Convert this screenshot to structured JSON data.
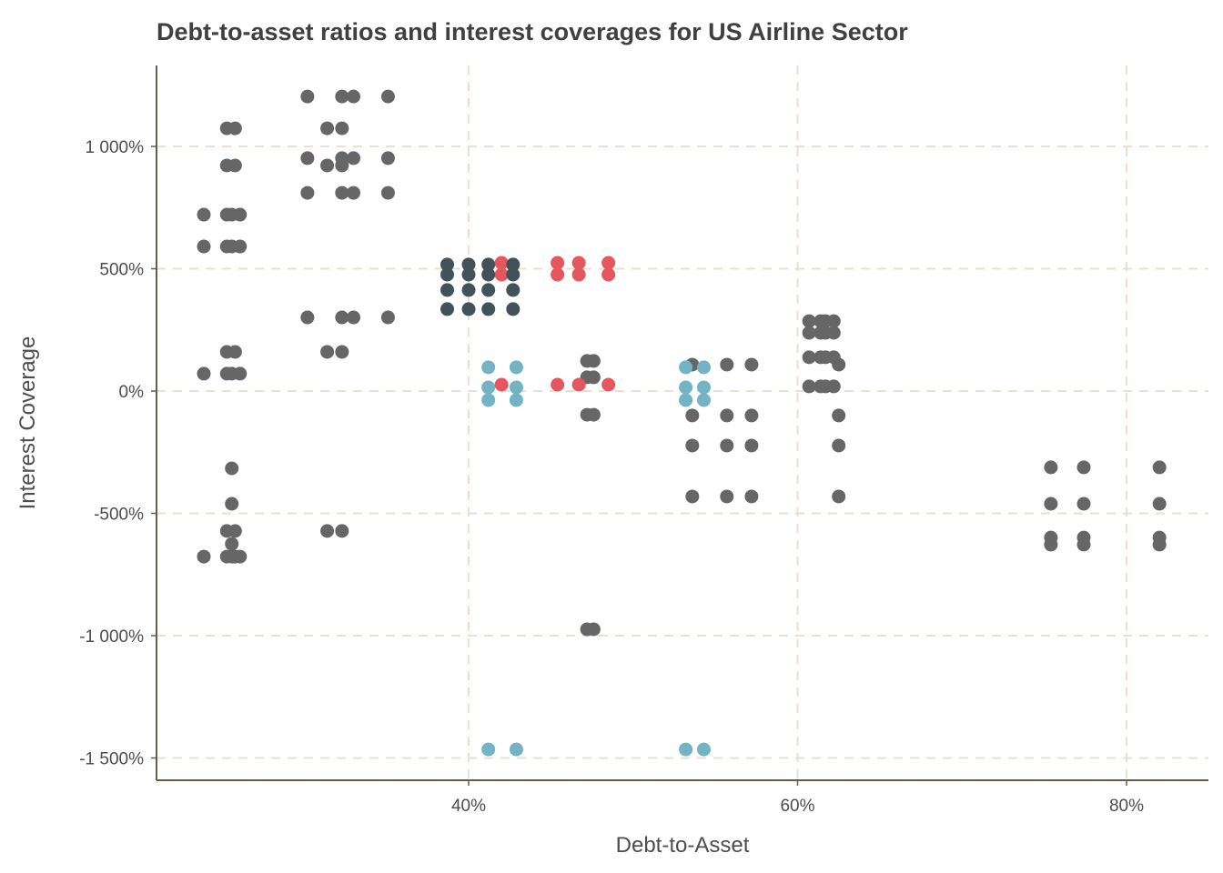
{
  "chart_data": {
    "type": "scatter",
    "title": "Debt-to-asset ratios and interest coverages for  US Airline Sector",
    "xlabel": "Debt-to-Asset",
    "ylabel": "Interest Coverage",
    "xlim": [
      21,
      84
    ],
    "ylim": [
      -1595,
      1330
    ],
    "grid": true,
    "x_ticks": [
      {
        "value": 40,
        "label": "40%"
      },
      {
        "value": 60,
        "label": "60%"
      },
      {
        "value": 80,
        "label": "80%"
      }
    ],
    "y_ticks": [
      {
        "value": 1000,
        "label": "1 000%"
      },
      {
        "value": 500,
        "label": "500%"
      },
      {
        "value": 0,
        "label": "0%"
      },
      {
        "value": -500,
        "label": "-500%"
      },
      {
        "value": -1000,
        "label": "-1 000%"
      },
      {
        "value": -1500,
        "label": "-1 500%"
      }
    ],
    "series": [
      {
        "name": "gray",
        "color": "#666666",
        "points": [
          [
            25.3,
            1074
          ],
          [
            25.8,
            1074
          ],
          [
            25.3,
            922
          ],
          [
            25.8,
            922
          ],
          [
            23.9,
            721
          ],
          [
            25.3,
            721
          ],
          [
            25.6,
            721
          ],
          [
            26.1,
            721
          ],
          [
            23.9,
            591
          ],
          [
            25.3,
            591
          ],
          [
            25.6,
            591
          ],
          [
            26.1,
            591
          ],
          [
            25.3,
            160
          ],
          [
            25.8,
            160
          ],
          [
            23.9,
            71
          ],
          [
            25.3,
            71
          ],
          [
            25.6,
            71
          ],
          [
            26.1,
            71
          ],
          [
            25.6,
            -316
          ],
          [
            25.6,
            -461
          ],
          [
            25.3,
            -572
          ],
          [
            25.8,
            -572
          ],
          [
            25.6,
            -625
          ],
          [
            23.9,
            -677
          ],
          [
            25.3,
            -677
          ],
          [
            25.6,
            -677
          ],
          [
            25.8,
            -677
          ],
          [
            26.1,
            -677
          ],
          [
            30.2,
            1204
          ],
          [
            32.3,
            1204
          ],
          [
            33.0,
            1204
          ],
          [
            35.1,
            1204
          ],
          [
            31.4,
            1074
          ],
          [
            32.3,
            1074
          ],
          [
            30.2,
            952
          ],
          [
            32.3,
            952
          ],
          [
            33.0,
            952
          ],
          [
            35.1,
            952
          ],
          [
            31.4,
            922
          ],
          [
            32.3,
            922
          ],
          [
            30.2,
            810
          ],
          [
            32.3,
            810
          ],
          [
            33.0,
            810
          ],
          [
            35.1,
            810
          ],
          [
            30.2,
            301
          ],
          [
            32.3,
            301
          ],
          [
            33.0,
            301
          ],
          [
            35.1,
            301
          ],
          [
            31.4,
            160
          ],
          [
            32.3,
            160
          ],
          [
            31.4,
            -572
          ],
          [
            32.3,
            -572
          ],
          [
            47.2,
            123
          ],
          [
            47.6,
            123
          ],
          [
            47.2,
            56
          ],
          [
            47.6,
            56
          ],
          [
            47.2,
            -97
          ],
          [
            47.6,
            -97
          ],
          [
            47.2,
            -974
          ],
          [
            47.6,
            -974
          ],
          [
            53.6,
            108
          ],
          [
            53.6,
            -100
          ],
          [
            53.6,
            -223
          ],
          [
            53.6,
            -431
          ],
          [
            55.7,
            108
          ],
          [
            55.7,
            -100
          ],
          [
            55.7,
            -223
          ],
          [
            55.7,
            -431
          ],
          [
            57.2,
            108
          ],
          [
            57.2,
            -100
          ],
          [
            57.2,
            -223
          ],
          [
            57.2,
            -431
          ],
          [
            60.7,
            286
          ],
          [
            61.4,
            286
          ],
          [
            61.7,
            286
          ],
          [
            62.2,
            286
          ],
          [
            60.7,
            238
          ],
          [
            61.4,
            238
          ],
          [
            61.7,
            238
          ],
          [
            62.2,
            238
          ],
          [
            60.7,
            138
          ],
          [
            61.4,
            138
          ],
          [
            61.7,
            138
          ],
          [
            62.2,
            138
          ],
          [
            60.7,
            19
          ],
          [
            61.4,
            19
          ],
          [
            61.7,
            19
          ],
          [
            62.2,
            19
          ],
          [
            62.5,
            108
          ],
          [
            62.5,
            -100
          ],
          [
            62.5,
            -223
          ],
          [
            62.5,
            -431
          ],
          [
            75.4,
            -312
          ],
          [
            75.4,
            -461
          ],
          [
            75.4,
            -599
          ],
          [
            75.4,
            -628
          ],
          [
            77.4,
            -312
          ],
          [
            77.4,
            -461
          ],
          [
            77.4,
            -599
          ],
          [
            77.4,
            -628
          ],
          [
            82.0,
            -312
          ],
          [
            82.0,
            -461
          ],
          [
            82.0,
            -599
          ],
          [
            82.0,
            -628
          ]
        ]
      },
      {
        "name": "teal",
        "color": "#74b3c4",
        "points": [
          [
            41.2,
            97
          ],
          [
            41.2,
            15
          ],
          [
            41.2,
            -37
          ],
          [
            42.9,
            97
          ],
          [
            42.9,
            15
          ],
          [
            42.9,
            -37
          ],
          [
            53.2,
            97
          ],
          [
            53.2,
            15
          ],
          [
            53.2,
            -37
          ],
          [
            54.3,
            97
          ],
          [
            54.3,
            15
          ],
          [
            54.3,
            -37
          ],
          [
            41.2,
            -1465
          ],
          [
            42.9,
            -1465
          ],
          [
            53.2,
            -1465
          ],
          [
            54.3,
            -1465
          ]
        ]
      },
      {
        "name": "red",
        "color": "#e5575f",
        "points": [
          [
            42.0,
            524
          ],
          [
            42.0,
            476
          ],
          [
            45.4,
            524
          ],
          [
            45.4,
            476
          ],
          [
            46.7,
            524
          ],
          [
            46.7,
            476
          ],
          [
            48.5,
            524
          ],
          [
            48.5,
            476
          ],
          [
            42.0,
            26
          ],
          [
            45.4,
            26
          ],
          [
            46.7,
            26
          ],
          [
            48.5,
            26
          ]
        ]
      },
      {
        "name": "dark",
        "color": "#41525a",
        "points": [
          [
            38.7,
            517
          ],
          [
            38.7,
            476
          ],
          [
            38.7,
            413
          ],
          [
            38.7,
            335
          ],
          [
            40.0,
            517
          ],
          [
            40.0,
            476
          ],
          [
            40.0,
            413
          ],
          [
            40.0,
            335
          ],
          [
            41.2,
            517
          ],
          [
            41.2,
            476
          ],
          [
            41.2,
            413
          ],
          [
            41.2,
            335
          ],
          [
            42.7,
            517
          ],
          [
            42.7,
            476
          ],
          [
            42.7,
            413
          ],
          [
            42.7,
            335
          ]
        ]
      }
    ],
    "colors": {
      "axis": "#6b5a45",
      "grid": "#eadfd2",
      "text": "#4d4d4d"
    }
  }
}
